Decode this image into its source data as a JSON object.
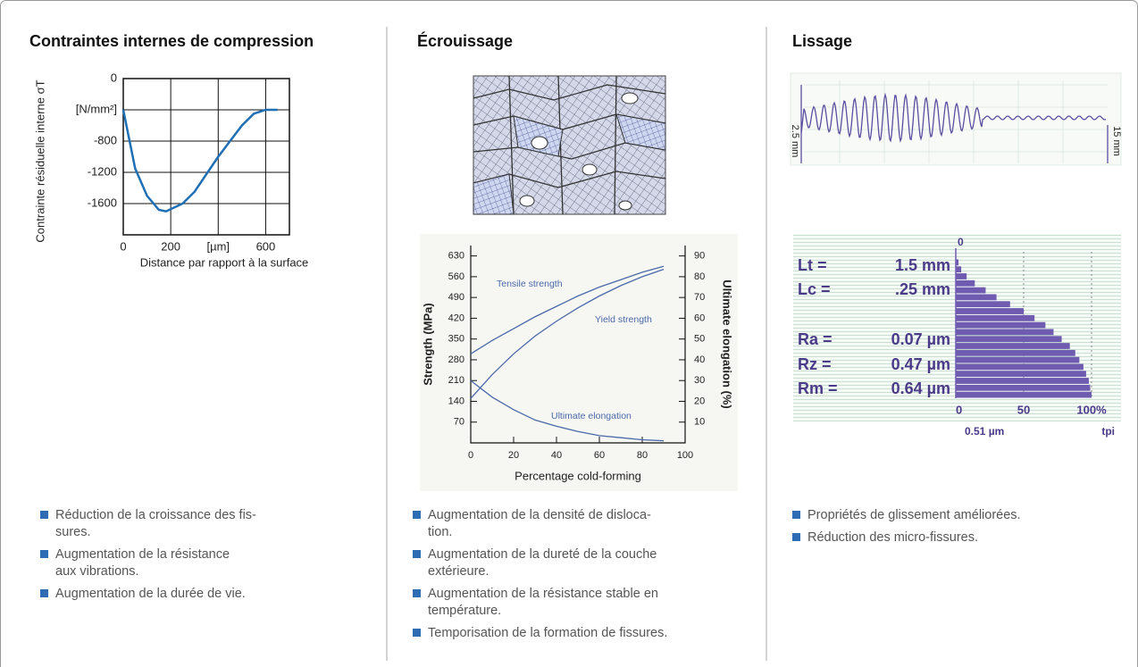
{
  "columns": [
    {
      "title": "Contraintes internes de compression",
      "chart": {
        "type": "line",
        "y_label": "Contrainte résiduelle interne σT",
        "x_label": "Distance par rapport à la surface",
        "x": [
          0,
          50,
          100,
          150,
          180,
          250,
          300,
          400,
          500,
          550,
          600,
          650
        ],
        "values": [
          -400,
          -1150,
          -1500,
          -1680,
          -1700,
          -1600,
          -1450,
          -1000,
          -600,
          -450,
          -400,
          -400
        ],
        "color": "#1f6fb5",
        "xlim": [
          0,
          700
        ],
        "ylim": [
          -2000,
          0
        ],
        "xticks": [
          0,
          200,
          {
            "value": 400,
            "label": "[µm]"
          },
          600
        ],
        "yticks": [
          0,
          {
            "value": -400,
            "label": "[N/mm²]"
          },
          -800,
          -1200,
          -1600
        ],
        "grid": true
      },
      "bullets": [
        [
          "Réduction de la croissance des fis-",
          "sures."
        ],
        [
          "Augmentation de la résistance",
          "aux vibrations."
        ],
        [
          "Augmentation de la durée de vie."
        ]
      ]
    },
    {
      "title": "Écrouissage",
      "chart": {
        "type": "line",
        "y_label": "Strength (MPa)",
        "y2_label": "Ultimate elongation (%)",
        "x_label": "Percentage cold-forming",
        "x": [
          0,
          10,
          20,
          30,
          40,
          50,
          60,
          70,
          80,
          90
        ],
        "series": [
          {
            "name": "Tensile strength",
            "color": "#4a6aaa",
            "values": [
              300,
              345,
              385,
              425,
              460,
              495,
              525,
              550,
              575,
              595
            ]
          },
          {
            "name": "Yield strength",
            "color": "#4a6aaa",
            "values": [
              150,
              230,
              300,
              360,
              410,
              455,
              495,
              530,
              560,
              585
            ]
          },
          {
            "name": "Ultimate elongation",
            "color": "#4a6aaa",
            "axis": "y2",
            "values": [
              30,
              22,
              16,
              11,
              8,
              5.5,
              3.5,
              2.5,
              1.5,
              1
            ]
          }
        ],
        "xlim": [
          0,
          100
        ],
        "ylim": [
          0,
          665
        ],
        "y2lim": [
          0,
          95
        ],
        "xticks": [
          0,
          20,
          40,
          60,
          80,
          100
        ],
        "yticks": [
          70,
          140,
          210,
          280,
          350,
          420,
          490,
          560,
          630
        ],
        "y2ticks": [
          10,
          20,
          30,
          40,
          50,
          60,
          70,
          80,
          90
        ],
        "grid": false
      },
      "bullets": [
        [
          "Augmentation de la densité de disloca-",
          "tion."
        ],
        [
          "Augmentation de la dureté de la couche",
          "extérieure."
        ],
        [
          "Augmentation de la résistance stable en",
          "température."
        ],
        [
          "Temporisation de la formation de fissures."
        ]
      ]
    },
    {
      "title": "Lissage",
      "profile": {
        "left_label": "2.5 mm",
        "right_label": "15 mm"
      },
      "bearing": {
        "type": "bar",
        "parameters": [
          {
            "label": "Lt =",
            "value": "1.5 mm"
          },
          {
            "label": "Lc =",
            "value": ".25 mm"
          },
          {
            "label": "Ra =",
            "value": "0.07 µm"
          },
          {
            "label": "Rz =",
            "value": "0.47 µm"
          },
          {
            "label": "Rm =",
            "value": "0.64 µm"
          }
        ],
        "top_label": "0",
        "values": [
          2,
          4,
          8,
          14,
          22,
          30,
          40,
          50,
          58,
          66,
          72,
          78,
          84,
          88,
          91,
          94,
          96,
          98,
          99,
          100
        ],
        "color": "#6f5bb0",
        "xlim": [
          0,
          100
        ],
        "xticks": [
          0,
          50,
          {
            "value": 100,
            "label": "100%"
          }
        ],
        "bottom_left": "0.51 µm",
        "bottom_right": "tpi"
      },
      "bullets": [
        [
          "Propriétés de glissement améliorées."
        ],
        [
          "Réduction des micro-fissures."
        ]
      ]
    }
  ]
}
